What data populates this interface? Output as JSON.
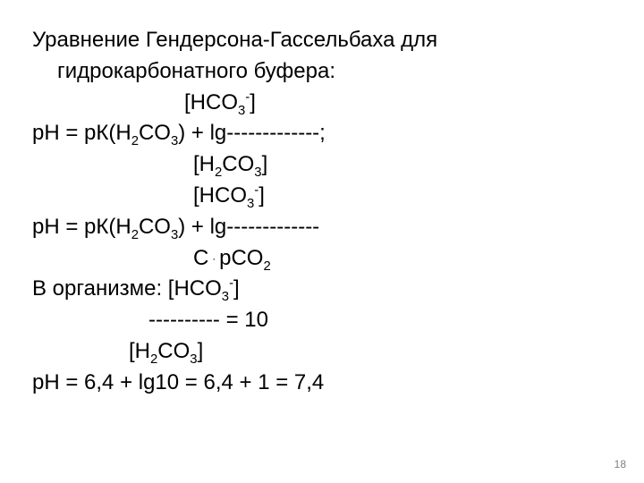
{
  "title_line1": "Уравнение Гендерсона-Гассельбаха для",
  "title_line2": "гидрокарбонатного буфера:",
  "eq1_num_left": "[HCO",
  "eq1_num_sub": "3",
  "eq1_num_sup": "-",
  "eq1_num_right": "]",
  "eq1_lhs_a": "pH = pК(H",
  "eq1_lhs_sub1": "2",
  "eq1_lhs_b": "CO",
  "eq1_lhs_sub2": "3",
  "eq1_lhs_c": ") + lg-------------;",
  "eq1_den_a": "[H",
  "eq1_den_sub1": "2",
  "eq1_den_b": "CO",
  "eq1_den_sub2": "3",
  "eq1_den_c": "]",
  "eq2_num_left": "[HCO",
  "eq2_num_sub": "3",
  "eq2_num_sup": "-",
  "eq2_num_right": "]",
  "eq2_lhs_a": "pH = pК(H",
  "eq2_lhs_sub1": "2",
  "eq2_lhs_b": "CO",
  "eq2_lhs_sub2": "3",
  "eq2_lhs_c": ") + lg-------------",
  "eq2_den_a": "C",
  "eq2_den_dot": "·",
  "eq2_den_b": "pCO",
  "eq2_den_sub": "2",
  "org_a": "В организме:  [HCO",
  "org_sub": "3",
  "org_sup": "-",
  "org_b": "]",
  "org_dash": "---------- = 10",
  "org_den_a": "[H",
  "org_den_sub1": "2",
  "org_den_b": "CO",
  "org_den_sub2": "3",
  "org_den_c": "]",
  "final": "pH = 6,4 + lg10 = 6,4 + 1 = 7,4",
  "page": "18",
  "colors": {
    "text": "#000000",
    "bg": "#ffffff",
    "page_num": "#808080"
  }
}
